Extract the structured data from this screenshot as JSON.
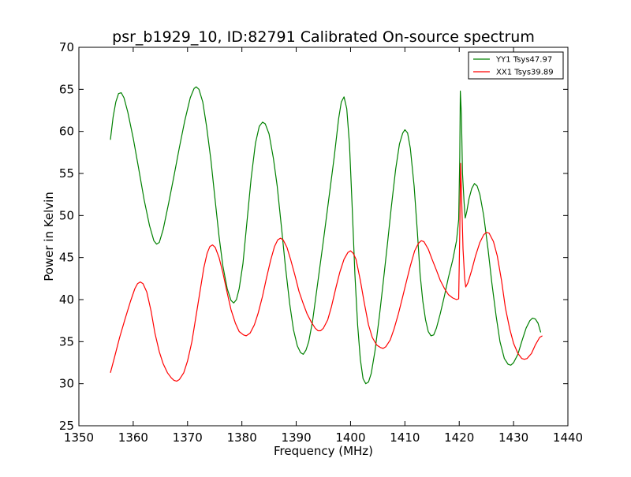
{
  "chart_data": {
    "type": "line",
    "title": "psr_b1929_10, ID:82791 Calibrated On-source spectrum",
    "xlabel": "Frequency (MHz)",
    "ylabel": "Power in Kelvin",
    "xlim": [
      1350,
      1440
    ],
    "ylim": [
      25,
      70
    ],
    "xticks": [
      1350,
      1360,
      1370,
      1380,
      1390,
      1400,
      1410,
      1420,
      1430,
      1440
    ],
    "yticks": [
      25,
      30,
      35,
      40,
      45,
      50,
      55,
      60,
      65,
      70
    ],
    "grid": false,
    "legend_position": "top-right",
    "series": [
      {
        "name": "YY1 Tsys47.97",
        "color": "#008000",
        "points": [
          [
            1355.8,
            59.0
          ],
          [
            1356.3,
            61.7
          ],
          [
            1356.8,
            63.5
          ],
          [
            1357.3,
            64.5
          ],
          [
            1357.8,
            64.6
          ],
          [
            1358.3,
            64.0
          ],
          [
            1359.0,
            62.3
          ],
          [
            1360.0,
            59.2
          ],
          [
            1361.0,
            55.6
          ],
          [
            1362.0,
            51.9
          ],
          [
            1363.0,
            48.8
          ],
          [
            1363.8,
            47.0
          ],
          [
            1364.3,
            46.6
          ],
          [
            1364.8,
            46.8
          ],
          [
            1365.5,
            48.3
          ],
          [
            1366.5,
            51.4
          ],
          [
            1367.5,
            54.7
          ],
          [
            1368.5,
            58.1
          ],
          [
            1369.5,
            61.3
          ],
          [
            1370.5,
            64.0
          ],
          [
            1371.2,
            65.1
          ],
          [
            1371.6,
            65.3
          ],
          [
            1372.1,
            65.0
          ],
          [
            1372.8,
            63.5
          ],
          [
            1373.5,
            60.6
          ],
          [
            1374.3,
            56.6
          ],
          [
            1375.0,
            52.3
          ],
          [
            1375.8,
            47.5
          ],
          [
            1376.5,
            44.0
          ],
          [
            1377.3,
            41.3
          ],
          [
            1378.0,
            39.9
          ],
          [
            1378.5,
            39.6
          ],
          [
            1379.0,
            40.0
          ],
          [
            1379.5,
            41.3
          ],
          [
            1380.2,
            44.3
          ],
          [
            1381.0,
            49.7
          ],
          [
            1381.7,
            54.4
          ],
          [
            1382.5,
            58.6
          ],
          [
            1383.2,
            60.6
          ],
          [
            1383.8,
            61.1
          ],
          [
            1384.3,
            60.9
          ],
          [
            1385.0,
            59.7
          ],
          [
            1385.8,
            56.8
          ],
          [
            1386.5,
            53.5
          ],
          [
            1387.3,
            48.5
          ],
          [
            1388.0,
            44.0
          ],
          [
            1388.8,
            39.5
          ],
          [
            1389.5,
            36.4
          ],
          [
            1390.2,
            34.5
          ],
          [
            1390.8,
            33.7
          ],
          [
            1391.3,
            33.5
          ],
          [
            1391.8,
            34.0
          ],
          [
            1392.3,
            35.0
          ],
          [
            1393.0,
            37.4
          ],
          [
            1394.0,
            42.2
          ],
          [
            1395.0,
            47.0
          ],
          [
            1396.0,
            52.0
          ],
          [
            1397.0,
            57.0
          ],
          [
            1397.8,
            61.5
          ],
          [
            1398.3,
            63.5
          ],
          [
            1398.8,
            64.1
          ],
          [
            1399.3,
            62.7
          ],
          [
            1399.8,
            58.5
          ],
          [
            1400.3,
            51.0
          ],
          [
            1400.8,
            43.0
          ],
          [
            1401.3,
            37.0
          ],
          [
            1401.8,
            32.9
          ],
          [
            1402.3,
            30.6
          ],
          [
            1402.8,
            30.0
          ],
          [
            1403.3,
            30.2
          ],
          [
            1403.8,
            31.2
          ],
          [
            1404.5,
            33.9
          ],
          [
            1405.3,
            38.0
          ],
          [
            1406.0,
            42.0
          ],
          [
            1406.8,
            46.7
          ],
          [
            1407.5,
            51.0
          ],
          [
            1408.3,
            55.5
          ],
          [
            1409.0,
            58.5
          ],
          [
            1409.6,
            59.8
          ],
          [
            1410.0,
            60.2
          ],
          [
            1410.5,
            59.8
          ],
          [
            1411.0,
            58.0
          ],
          [
            1411.7,
            53.5
          ],
          [
            1412.3,
            48.0
          ],
          [
            1412.8,
            43.0
          ],
          [
            1413.3,
            39.8
          ],
          [
            1413.8,
            37.6
          ],
          [
            1414.3,
            36.2
          ],
          [
            1414.8,
            35.7
          ],
          [
            1415.3,
            35.8
          ],
          [
            1415.8,
            36.6
          ],
          [
            1416.5,
            38.3
          ],
          [
            1417.3,
            40.5
          ],
          [
            1418.0,
            42.6
          ],
          [
            1418.8,
            44.7
          ],
          [
            1419.5,
            47.0
          ],
          [
            1419.9,
            49.5
          ],
          [
            1420.1,
            57.0
          ],
          [
            1420.2,
            64.8
          ],
          [
            1420.4,
            62.0
          ],
          [
            1420.6,
            55.0
          ],
          [
            1420.9,
            51.5
          ],
          [
            1421.1,
            49.7
          ],
          [
            1421.4,
            50.5
          ],
          [
            1421.8,
            52.0
          ],
          [
            1422.3,
            53.2
          ],
          [
            1422.8,
            53.8
          ],
          [
            1423.3,
            53.5
          ],
          [
            1423.8,
            52.5
          ],
          [
            1424.5,
            50.0
          ],
          [
            1425.3,
            46.0
          ],
          [
            1426.0,
            42.0
          ],
          [
            1426.8,
            38.0
          ],
          [
            1427.5,
            35.0
          ],
          [
            1428.3,
            33.0
          ],
          [
            1429.0,
            32.3
          ],
          [
            1429.5,
            32.2
          ],
          [
            1430.0,
            32.5
          ],
          [
            1430.8,
            33.5
          ],
          [
            1431.5,
            35.0
          ],
          [
            1432.3,
            36.6
          ],
          [
            1433.0,
            37.5
          ],
          [
            1433.5,
            37.8
          ],
          [
            1434.0,
            37.7
          ],
          [
            1434.5,
            37.2
          ],
          [
            1435.0,
            36.1
          ]
        ]
      },
      {
        "name": "XX1 Tsys39.89",
        "color": "#ff0000",
        "points": [
          [
            1355.8,
            31.3
          ],
          [
            1356.5,
            33.0
          ],
          [
            1357.5,
            35.5
          ],
          [
            1358.5,
            37.7
          ],
          [
            1359.5,
            39.8
          ],
          [
            1360.3,
            41.3
          ],
          [
            1360.8,
            41.9
          ],
          [
            1361.3,
            42.1
          ],
          [
            1361.8,
            41.9
          ],
          [
            1362.5,
            40.9
          ],
          [
            1363.3,
            38.6
          ],
          [
            1364.0,
            36.0
          ],
          [
            1364.8,
            33.8
          ],
          [
            1365.5,
            32.4
          ],
          [
            1366.3,
            31.3
          ],
          [
            1367.0,
            30.7
          ],
          [
            1367.5,
            30.4
          ],
          [
            1368.0,
            30.3
          ],
          [
            1368.5,
            30.5
          ],
          [
            1369.3,
            31.3
          ],
          [
            1370.0,
            32.7
          ],
          [
            1370.8,
            35.0
          ],
          [
            1371.5,
            37.8
          ],
          [
            1372.3,
            41.0
          ],
          [
            1373.0,
            43.8
          ],
          [
            1373.6,
            45.5
          ],
          [
            1374.1,
            46.3
          ],
          [
            1374.6,
            46.5
          ],
          [
            1375.1,
            46.2
          ],
          [
            1375.8,
            45.0
          ],
          [
            1376.5,
            43.2
          ],
          [
            1377.3,
            40.8
          ],
          [
            1378.0,
            38.8
          ],
          [
            1378.8,
            37.2
          ],
          [
            1379.5,
            36.2
          ],
          [
            1380.3,
            35.8
          ],
          [
            1380.8,
            35.7
          ],
          [
            1381.5,
            36.0
          ],
          [
            1382.3,
            37.0
          ],
          [
            1383.0,
            38.4
          ],
          [
            1383.8,
            40.4
          ],
          [
            1384.5,
            42.5
          ],
          [
            1385.3,
            44.7
          ],
          [
            1386.0,
            46.3
          ],
          [
            1386.6,
            47.1
          ],
          [
            1387.1,
            47.3
          ],
          [
            1387.6,
            47.1
          ],
          [
            1388.3,
            46.2
          ],
          [
            1389.0,
            44.7
          ],
          [
            1389.8,
            42.8
          ],
          [
            1390.5,
            41.0
          ],
          [
            1391.3,
            39.5
          ],
          [
            1392.0,
            38.3
          ],
          [
            1392.8,
            37.3
          ],
          [
            1393.5,
            36.6
          ],
          [
            1394.0,
            36.3
          ],
          [
            1394.5,
            36.3
          ],
          [
            1395.0,
            36.6
          ],
          [
            1395.8,
            37.6
          ],
          [
            1396.5,
            39.2
          ],
          [
            1397.3,
            41.4
          ],
          [
            1398.0,
            43.2
          ],
          [
            1398.8,
            44.8
          ],
          [
            1399.5,
            45.6
          ],
          [
            1400.0,
            45.8
          ],
          [
            1400.5,
            45.5
          ],
          [
            1401.0,
            44.8
          ],
          [
            1401.8,
            42.3
          ],
          [
            1402.5,
            39.7
          ],
          [
            1403.3,
            37.0
          ],
          [
            1404.0,
            35.5
          ],
          [
            1404.8,
            34.6
          ],
          [
            1405.5,
            34.3
          ],
          [
            1406.0,
            34.2
          ],
          [
            1406.5,
            34.4
          ],
          [
            1407.3,
            35.2
          ],
          [
            1408.0,
            36.5
          ],
          [
            1408.8,
            38.3
          ],
          [
            1409.5,
            40.1
          ],
          [
            1410.3,
            42.2
          ],
          [
            1411.0,
            44.0
          ],
          [
            1411.8,
            45.8
          ],
          [
            1412.5,
            46.7
          ],
          [
            1413.0,
            47.0
          ],
          [
            1413.5,
            46.9
          ],
          [
            1414.3,
            46.0
          ],
          [
            1415.0,
            44.8
          ],
          [
            1415.8,
            43.5
          ],
          [
            1416.5,
            42.3
          ],
          [
            1417.3,
            41.3
          ],
          [
            1418.0,
            40.6
          ],
          [
            1418.8,
            40.2
          ],
          [
            1419.5,
            40.0
          ],
          [
            1419.9,
            40.1
          ],
          [
            1420.1,
            48.0
          ],
          [
            1420.25,
            56.2
          ],
          [
            1420.4,
            53.0
          ],
          [
            1420.7,
            46.0
          ],
          [
            1421.0,
            42.5
          ],
          [
            1421.2,
            41.5
          ],
          [
            1421.6,
            42.0
          ],
          [
            1422.3,
            43.5
          ],
          [
            1423.0,
            45.2
          ],
          [
            1423.8,
            46.8
          ],
          [
            1424.5,
            47.7
          ],
          [
            1425.0,
            48.0
          ],
          [
            1425.5,
            47.9
          ],
          [
            1426.3,
            46.9
          ],
          [
            1427.0,
            45.2
          ],
          [
            1427.8,
            42.2
          ],
          [
            1428.5,
            39.0
          ],
          [
            1429.3,
            36.5
          ],
          [
            1430.0,
            34.8
          ],
          [
            1430.8,
            33.6
          ],
          [
            1431.5,
            33.0
          ],
          [
            1432.0,
            32.9
          ],
          [
            1432.5,
            33.0
          ],
          [
            1433.3,
            33.6
          ],
          [
            1434.0,
            34.6
          ],
          [
            1434.8,
            35.5
          ],
          [
            1435.3,
            35.7
          ]
        ]
      }
    ]
  }
}
